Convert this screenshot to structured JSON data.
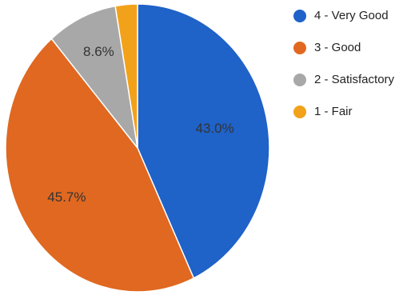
{
  "chart_data": {
    "type": "pie",
    "title": "",
    "slices": [
      {
        "label": "4 - Very Good",
        "value": 43.0,
        "data_label": "43.0%",
        "color": "#1f62c8"
      },
      {
        "label": "3 - Good",
        "value": 45.7,
        "data_label": "45.7%",
        "color": "#e06820"
      },
      {
        "label": "2 - Satisfactory",
        "value": 8.6,
        "data_label": "8.6%",
        "color": "#a8a8a8"
      },
      {
        "label": "1 - Fair",
        "value": 2.7,
        "data_label": "",
        "color": "#f2a21a"
      }
    ],
    "start_angle_deg": 0,
    "direction": "clockwise",
    "legend_position": "right",
    "data_labels_inside": true
  }
}
